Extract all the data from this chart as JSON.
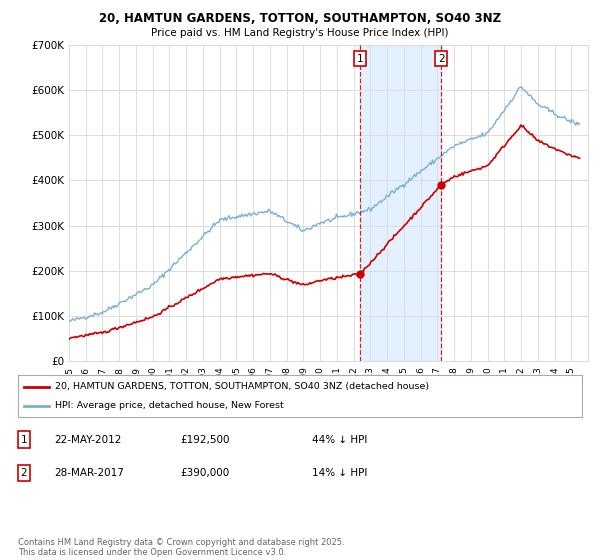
{
  "title": "20, HAMTUN GARDENS, TOTTON, SOUTHAMPTON, SO40 3NZ",
  "subtitle": "Price paid vs. HM Land Registry's House Price Index (HPI)",
  "ylim": [
    0,
    700000
  ],
  "yticks": [
    0,
    100000,
    200000,
    300000,
    400000,
    500000,
    600000,
    700000
  ],
  "ytick_labels": [
    "£0",
    "£100K",
    "£200K",
    "£300K",
    "£400K",
    "£500K",
    "£600K",
    "£700K"
  ],
  "line_color_property": "#cc0000",
  "line_color_hpi": "#7ab0d4",
  "background_color": "#ffffff",
  "grid_color": "#dddddd",
  "t1": 2012.38,
  "t2": 2017.23,
  "p1": 192500,
  "p2": 390000,
  "transaction1_info_date": "22-MAY-2012",
  "transaction1_info_price": "£192,500",
  "transaction1_info_hpi": "44% ↓ HPI",
  "transaction2_info_date": "28-MAR-2017",
  "transaction2_info_price": "£390,000",
  "transaction2_info_hpi": "14% ↓ HPI",
  "legend_property": "20, HAMTUN GARDENS, TOTTON, SOUTHAMPTON, SO40 3NZ (detached house)",
  "legend_hpi": "HPI: Average price, detached house, New Forest",
  "footer": "Contains HM Land Registry data © Crown copyright and database right 2025.\nThis data is licensed under the Open Government Licence v3.0.",
  "shaded_region_color": "#ddeeff",
  "marker_box_color": "#cc0000",
  "xmin": 1995,
  "xmax": 2026
}
